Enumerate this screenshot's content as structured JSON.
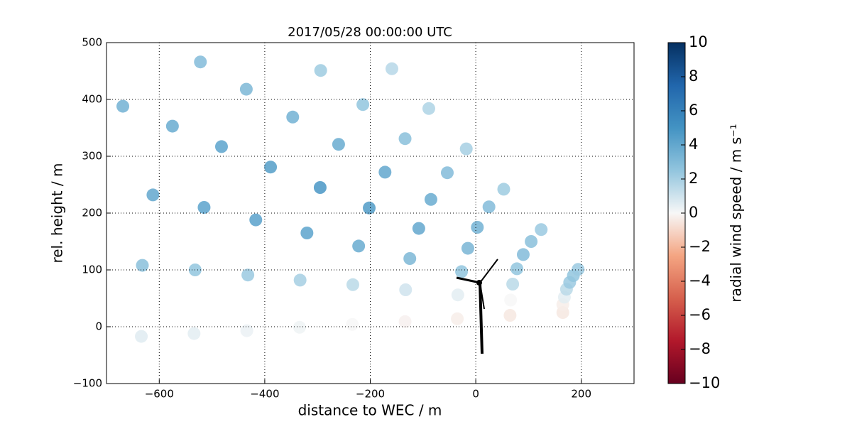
{
  "chart_data": {
    "type": "scatter",
    "title": "2017/05/28 00:00:00 UTC",
    "x_label": "distance to WEC / m",
    "y_label": "rel. height / m",
    "colorbar_label": "radial wind speed / m s⁻¹",
    "colormap": "RdBu_r",
    "clim": [
      -10,
      10
    ],
    "cticks": [
      {
        "value": 10,
        "label": "10"
      },
      {
        "value": 8,
        "label": "8"
      },
      {
        "value": 6,
        "label": "6"
      },
      {
        "value": 4,
        "label": "4"
      },
      {
        "value": 2,
        "label": "2"
      },
      {
        "value": 0,
        "label": "0"
      },
      {
        "value": -2,
        "label": "−2"
      },
      {
        "value": -4,
        "label": "−4"
      },
      {
        "value": -6,
        "label": "−6"
      },
      {
        "value": -8,
        "label": "−8"
      },
      {
        "value": -10,
        "label": "−10"
      }
    ],
    "xlim": [
      -700,
      300
    ],
    "ylim": [
      -100,
      500
    ],
    "xticks": [
      {
        "value": -600,
        "label": "−600"
      },
      {
        "value": -400,
        "label": "−400"
      },
      {
        "value": -200,
        "label": "−200"
      },
      0,
      200
    ],
    "yticks": [
      {
        "value": -100,
        "label": "−100"
      },
      0,
      100,
      200,
      300,
      400,
      500
    ],
    "grid": true,
    "x": [
      165,
      65,
      -35,
      -134,
      -234,
      -334,
      -434,
      -534,
      -634,
      165,
      66,
      -34,
      -133,
      -233,
      -333,
      -432,
      -532,
      -632,
      168,
      70,
      -27,
      -125,
      -222,
      -320,
      -417,
      -515,
      -612,
      172,
      78,
      -15,
      -108,
      -202,
      -295,
      -389,
      -482,
      -575,
      -669,
      178,
      90,
      3,
      -85,
      -172,
      -260,
      -347,
      -435,
      -522,
      185,
      105,
      25,
      -54,
      -134,
      -214,
      -294,
      194,
      124,
      53,
      -18,
      -89,
      -159
    ],
    "y": [
      25,
      20,
      14,
      9,
      4,
      -1,
      -7,
      -12,
      -17,
      39,
      47,
      56,
      65,
      74,
      82,
      91,
      100,
      108,
      52,
      75,
      97,
      120,
      142,
      165,
      188,
      210,
      232,
      66,
      102,
      138,
      173,
      209,
      245,
      281,
      317,
      353,
      388,
      78,
      127,
      175,
      224,
      272,
      321,
      369,
      418,
      466,
      90,
      150,
      211,
      271,
      331,
      391,
      451,
      101,
      171,
      242,
      313,
      384,
      454
    ],
    "c": [
      -0.5,
      -0.5,
      -0.3,
      -0.2,
      0,
      0.2,
      0.3,
      0.5,
      0.6,
      -0.3,
      0,
      0.5,
      1.0,
      1.5,
      2.0,
      2.3,
      2.5,
      2.8,
      0.5,
      1.5,
      2.5,
      3.2,
      3.8,
      4.2,
      4.3,
      4.2,
      4.0,
      1.5,
      2.5,
      3.3,
      4.0,
      4.6,
      4.8,
      4.5,
      4.2,
      3.8,
      3.5,
      2.3,
      3.0,
      3.5,
      3.8,
      4.0,
      3.8,
      3.5,
      3.2,
      3.0,
      2.5,
      2.8,
      3.0,
      3.0,
      2.8,
      2.5,
      2.2,
      2.3,
      2.3,
      2.2,
      2.0,
      1.8,
      1.6
    ]
  }
}
